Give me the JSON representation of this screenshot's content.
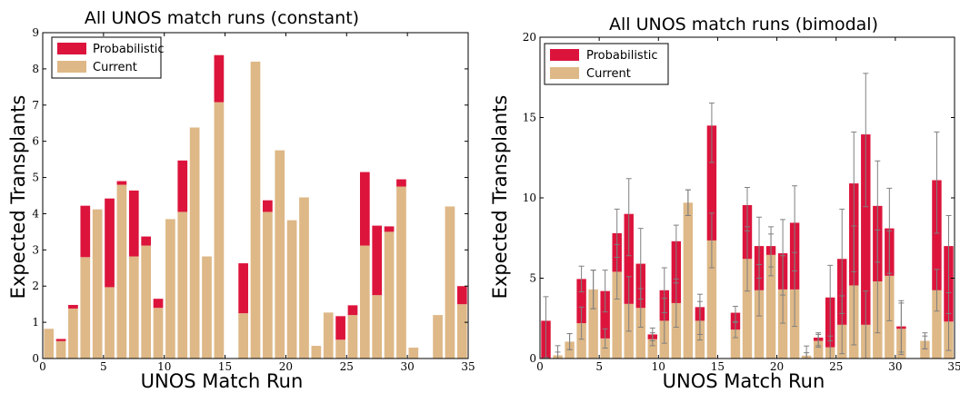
{
  "colors": {
    "probabilistic": "#dc143c",
    "current": "#deb887",
    "errorbar": "#808080"
  },
  "chart_data": [
    {
      "type": "bar",
      "title": "All UNOS match runs (constant)",
      "xlabel": "UNOS Match Run",
      "ylabel": "Expected Transplants",
      "xlim": [
        0,
        35
      ],
      "ylim": [
        0,
        9
      ],
      "xticks": [
        0,
        5,
        10,
        15,
        20,
        25,
        30,
        35
      ],
      "yticks": [
        0,
        1,
        2,
        3,
        4,
        5,
        6,
        7,
        8,
        9
      ],
      "grid": false,
      "legend_position": "top-left",
      "stacked": true,
      "x": [
        0,
        1,
        2,
        3,
        4,
        5,
        6,
        7,
        8,
        9,
        10,
        11,
        12,
        13,
        14,
        15,
        16,
        17,
        18,
        19,
        20,
        21,
        22,
        23,
        24,
        25,
        26,
        27,
        28,
        29,
        30,
        31,
        32,
        33,
        34
      ],
      "series": [
        {
          "name": "Current",
          "values": [
            0.82,
            0.48,
            1.38,
            2.8,
            4.12,
            1.97,
            4.8,
            2.82,
            3.12,
            1.4,
            3.85,
            4.05,
            6.38,
            2.82,
            7.08,
            0,
            1.25,
            8.2,
            4.05,
            5.75,
            3.82,
            4.45,
            0.35,
            1.27,
            0.52,
            1.2,
            3.12,
            1.75,
            3.5,
            4.75,
            0.3,
            0,
            1.2,
            4.2,
            1.5
          ]
        },
        {
          "name": "Probabilistic",
          "values": [
            0,
            0.06,
            0.1,
            1.42,
            0,
            2.45,
            0.1,
            1.82,
            0.25,
            0.25,
            0,
            1.42,
            0,
            0,
            1.3,
            0,
            1.38,
            0,
            0.32,
            0,
            0,
            0,
            0,
            0,
            0.65,
            0.27,
            2.03,
            1.92,
            0.15,
            0.2,
            0,
            0,
            0,
            0,
            0.5
          ]
        }
      ]
    },
    {
      "type": "bar",
      "title": "All UNOS match runs (bimodal)",
      "xlabel": "UNOS Match Run",
      "ylabel": "Expected Transplants",
      "xlim": [
        0,
        35
      ],
      "ylim": [
        0,
        20
      ],
      "xticks": [
        0,
        5,
        10,
        15,
        20,
        25,
        30,
        35
      ],
      "yticks": [
        0,
        5,
        10,
        15,
        20
      ],
      "grid": false,
      "legend_position": "top-left",
      "stacked": true,
      "error_bars": true,
      "x": [
        0,
        1,
        2,
        3,
        4,
        5,
        6,
        7,
        8,
        9,
        10,
        11,
        12,
        13,
        14,
        15,
        16,
        17,
        18,
        19,
        20,
        21,
        22,
        23,
        24,
        25,
        26,
        27,
        28,
        29,
        30,
        31,
        32,
        33,
        34
      ],
      "series": [
        {
          "name": "Current",
          "values": [
            0,
            0.2,
            1.05,
            2.2,
            4.3,
            1.25,
            5.4,
            3.4,
            3.15,
            1.2,
            2.35,
            3.45,
            9.7,
            2.35,
            7.35,
            0,
            1.8,
            6.2,
            4.25,
            6.45,
            4.3,
            4.3,
            0.18,
            1.1,
            0.7,
            2.1,
            4.55,
            2.1,
            4.8,
            5.15,
            1.85,
            0,
            1.1,
            4.25,
            2.3
          ],
          "err_low": [
            0,
            0.2,
            0.5,
            1.0,
            1.2,
            0.6,
            1.7,
            1.7,
            1.2,
            0.4,
            1.4,
            1.5,
            0.8,
            1.2,
            1.7,
            0,
            0.5,
            2.0,
            1.6,
            1.3,
            2.1,
            2.3,
            0.18,
            0.4,
            0.7,
            1.8,
            3.7,
            2.1,
            3.2,
            2.8,
            1.6,
            0,
            0.5,
            1.3,
            1.8
          ],
          "err_high": [
            0,
            0.2,
            0.5,
            1.0,
            1.2,
            0.6,
            1.7,
            1.7,
            1.2,
            0.4,
            1.4,
            1.5,
            0.8,
            1.2,
            1.7,
            0,
            0.5,
            2.0,
            1.6,
            1.3,
            2.1,
            2.3,
            0.18,
            0.4,
            0.7,
            1.8,
            3.7,
            2.1,
            3.2,
            2.8,
            1.6,
            0,
            0.5,
            1.3,
            1.8
          ]
        },
        {
          "name": "Probabilistic",
          "values": [
            2.35,
            0,
            0,
            2.75,
            0,
            2.95,
            2.4,
            5.6,
            2.75,
            0.3,
            1.9,
            3.85,
            0,
            0.85,
            7.15,
            0,
            1.05,
            3.35,
            2.75,
            0.55,
            2.25,
            4.15,
            0,
            0.2,
            3.1,
            4.1,
            6.35,
            11.85,
            4.7,
            2.95,
            0.15,
            0,
            0,
            6.85,
            4.7
          ],
          "err_low": [
            2.3,
            0.6,
            0.5,
            0.8,
            1.2,
            1.3,
            1.5,
            2.6,
            2.2,
            0.4,
            1.4,
            2.6,
            0.8,
            1.7,
            2.3,
            0,
            0.6,
            1.6,
            2.0,
            1.3,
            2.6,
            3.0,
            0.4,
            0.5,
            2.7,
            3.4,
            5.5,
            4.5,
            3.5,
            2.8,
            1.6,
            0,
            0.5,
            3.3,
            4.2
          ],
          "err_high": [
            1.5,
            0.6,
            0.5,
            0.8,
            1.2,
            1.3,
            1.5,
            2.2,
            2.2,
            0.4,
            1.4,
            1.0,
            0.8,
            0.8,
            1.4,
            0,
            0.4,
            1.1,
            1.8,
            1.2,
            2.1,
            2.3,
            0.6,
            0.3,
            2.0,
            3.1,
            3.2,
            3.8,
            2.8,
            2.5,
            1.6,
            0,
            0.3,
            3.0,
            1.9
          ]
        }
      ]
    }
  ]
}
